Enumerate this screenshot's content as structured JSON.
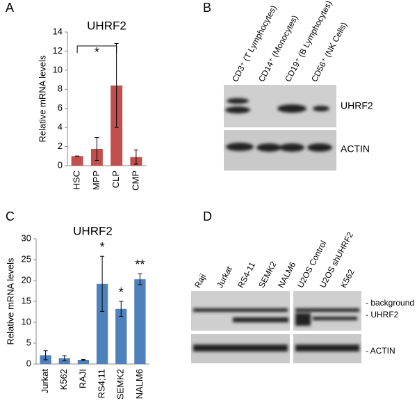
{
  "panel_labels": [
    "A",
    "B",
    "C",
    "D"
  ],
  "chart_data": [
    {
      "type": "bar",
      "title": "UHRF2",
      "y_label": "Relative mRNA levels",
      "categories": [
        "HSC",
        "MPP",
        "CLP",
        "CMP"
      ],
      "values": [
        1,
        1.75,
        8.4,
        0.9
      ],
      "errors": [
        0,
        1.2,
        4.4,
        0.75
      ],
      "color": "#c0504d",
      "ylim": [
        0,
        14
      ],
      "yticks": [
        0,
        2,
        4,
        6,
        8,
        10,
        12,
        14
      ],
      "grid": false,
      "annotations": [
        "*"
      ]
    },
    {
      "type": "bar",
      "title": "UHRF2",
      "y_label": "Relative mRNA levels",
      "categories": [
        "Jurkat",
        "K562",
        "RAJI",
        "RS4;11",
        "SEMK2",
        "NALM6"
      ],
      "values": [
        2.1,
        1.4,
        1.0,
        19.2,
        13.2,
        20.3
      ],
      "errors": [
        1.1,
        0.6,
        0.1,
        6.6,
        1.8,
        1.3
      ],
      "color": "#4f81bd",
      "ylim": [
        0,
        30
      ],
      "yticks": [
        0,
        5,
        10,
        15,
        20,
        25,
        30
      ],
      "grid": false,
      "annotations": [
        "*",
        "*",
        "**"
      ]
    }
  ],
  "blots": [
    {
      "lanes": [
        "CD3⁺ (T Lymphocytes)",
        "CD14⁺ (Monocytes)",
        "CD19⁺ (B Lymphocytes)",
        "CD56⁺ (NK Cells)"
      ],
      "bands": [
        "UHRF2",
        "ACTIN"
      ]
    },
    {
      "lanes": [
        "Raji",
        "Jurkat",
        "RS4-11",
        "SEMK2",
        "NALM6",
        "U2OS Control",
        "U2OS shUHRF2",
        "K562"
      ],
      "bands": [
        "- background",
        "- UHRF2",
        "- ACTIN"
      ]
    }
  ]
}
